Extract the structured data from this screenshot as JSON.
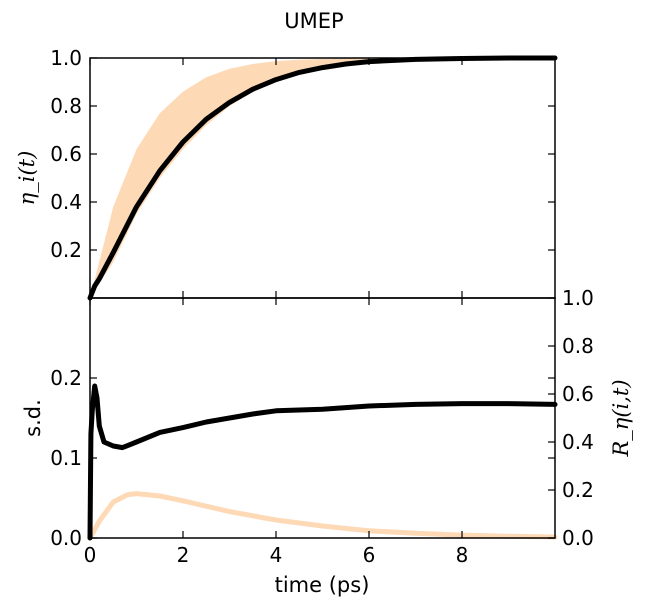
{
  "colors": {
    "band": "#fdd9b5",
    "mean": "#000000",
    "axis": "#000000"
  },
  "chart_data": [
    {
      "type": "line",
      "title": "UMEP",
      "xlabel": "",
      "ylabel": "η_i(t)",
      "xlim": [
        0,
        10
      ],
      "ylim": [
        0,
        1.0
      ],
      "yticks": [
        "0.2",
        "0.4",
        "0.6",
        "0.8",
        "1.0"
      ],
      "series": [
        {
          "kind": "band",
          "x": [
            0,
            0.5,
            1,
            1.5,
            2,
            2.5,
            3,
            3.5,
            4,
            4.5,
            5,
            5.5,
            6,
            7,
            8,
            9,
            10
          ],
          "lower": [
            0,
            0.15,
            0.35,
            0.5,
            0.62,
            0.72,
            0.8,
            0.86,
            0.9,
            0.93,
            0.955,
            0.97,
            0.98,
            0.992,
            0.997,
            0.999,
            1.0
          ],
          "upper": [
            0,
            0.38,
            0.62,
            0.77,
            0.86,
            0.92,
            0.955,
            0.975,
            0.987,
            0.993,
            0.996,
            0.998,
            0.999,
            1.0,
            1.0,
            1.0,
            1.0
          ]
        },
        {
          "kind": "line",
          "x": [
            0,
            0.1,
            0.2,
            0.5,
            1,
            1.5,
            2,
            2.5,
            3,
            3.5,
            4,
            4.5,
            5,
            5.5,
            6,
            7,
            8,
            9,
            10
          ],
          "y": [
            0,
            0.05,
            0.08,
            0.19,
            0.38,
            0.53,
            0.65,
            0.745,
            0.815,
            0.87,
            0.91,
            0.94,
            0.96,
            0.975,
            0.985,
            0.994,
            0.998,
            1.0,
            1.0
          ]
        }
      ]
    },
    {
      "type": "line",
      "xlabel": "time (ps)",
      "ylabel": "s.d.",
      "ylabel_right": "R_η(i,t)",
      "xlim": [
        0,
        10
      ],
      "ylim": [
        0,
        0.3
      ],
      "ylim_right": [
        0,
        1.0
      ],
      "xticks": [
        "0",
        "2",
        "4",
        "6",
        "8"
      ],
      "yticks": [
        "0.0",
        "0.1",
        "0.2"
      ],
      "yticks_right": [
        "0.0",
        "0.2",
        "0.4",
        "0.6",
        "0.8",
        "1.0"
      ],
      "series": [
        {
          "axis": "left",
          "x": [
            0,
            0.02,
            0.05,
            0.1,
            0.15,
            0.2,
            0.3,
            0.5,
            0.7,
            1.0,
            1.5,
            2,
            2.5,
            3,
            3.5,
            4,
            5,
            6,
            7,
            8,
            9,
            10
          ],
          "y": [
            0,
            0.13,
            0.16,
            0.19,
            0.175,
            0.14,
            0.12,
            0.115,
            0.113,
            0.12,
            0.132,
            0.138,
            0.145,
            0.15,
            0.155,
            0.159,
            0.161,
            0.165,
            0.167,
            0.168,
            0.168,
            0.167
          ]
        },
        {
          "axis": "right",
          "x": [
            0,
            0.2,
            0.5,
            0.8,
            1.0,
            1.5,
            2,
            3,
            4,
            5,
            6,
            7,
            8,
            9,
            10
          ],
          "y": [
            0,
            0.07,
            0.15,
            0.18,
            0.185,
            0.175,
            0.155,
            0.11,
            0.075,
            0.05,
            0.03,
            0.02,
            0.012,
            0.007,
            0.004
          ]
        }
      ]
    }
  ]
}
